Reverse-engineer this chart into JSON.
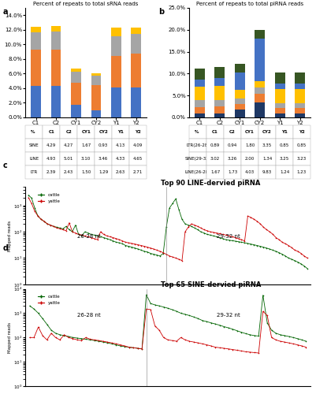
{
  "panel_a_title": "Percent of repeats to total sRNA reads",
  "panel_b_title": "Percent of repeats to total piRNA reads",
  "panel_c_title": "Top 90 LINE-dervied piRNA",
  "panel_d_title": "Top 65 SINE-dervied piRNA",
  "categories": [
    "C1",
    "C2",
    "CY1",
    "CY2",
    "Y1",
    "Y2"
  ],
  "sRNA_SINE": [
    4.29,
    4.27,
    1.67,
    0.93,
    4.13,
    4.09
  ],
  "sRNA_LINE": [
    4.93,
    5.01,
    3.1,
    3.46,
    4.33,
    4.65
  ],
  "sRNA_LTR": [
    2.39,
    2.43,
    1.5,
    1.29,
    2.63,
    2.71
  ],
  "sRNA_DNA": [
    0.8,
    0.8,
    0.4,
    0.3,
    1.2,
    0.8
  ],
  "piRNA_LTR2628": [
    0.89,
    0.94,
    1.8,
    3.35,
    0.85,
    0.85
  ],
  "piRNA_LTR2932": [
    1.5,
    1.5,
    1.2,
    2.0,
    1.2,
    1.2
  ],
  "piRNA_SINE2628": [
    1.5,
    1.5,
    1.2,
    1.5,
    1.2,
    1.2
  ],
  "piRNA_SINE2932": [
    3.02,
    3.26,
    2.0,
    1.34,
    3.25,
    3.23
  ],
  "piRNA_LINE2628": [
    1.67,
    1.73,
    4.03,
    9.83,
    1.24,
    1.23
  ],
  "piRNA_LINE2932": [
    2.5,
    2.5,
    2.0,
    2.0,
    2.5,
    2.5
  ],
  "color_SINE": "#4472C4",
  "color_LINE": "#ED7D31",
  "color_LTR": "#A5A5A5",
  "color_DNA": "#FFC000",
  "color_LTR2628": "#1F3864",
  "color_LTR2932": "#ED7D31",
  "color_SINE2628": "#A5A5A5",
  "color_SINE2932": "#FFC000",
  "color_LINE2628": "#4472C4",
  "color_LINE2932": "#375623",
  "table_a_rows": [
    "SINE",
    "LINE",
    "LTR"
  ],
  "table_a_data": [
    [
      4.29,
      4.27,
      1.67,
      0.93,
      4.13,
      4.09
    ],
    [
      4.93,
      5.01,
      3.1,
      3.46,
      4.33,
      4.65
    ],
    [
      2.39,
      2.43,
      1.5,
      1.29,
      2.63,
      2.71
    ]
  ],
  "table_b_rows": [
    "LTR(26-28)",
    "SINE(29-32)",
    "LINE(26-28)"
  ],
  "table_b_data": [
    [
      0.89,
      0.94,
      1.8,
      3.35,
      0.85,
      0.85
    ],
    [
      3.02,
      3.26,
      2.0,
      1.34,
      3.25,
      3.23
    ],
    [
      1.67,
      1.73,
      4.03,
      9.83,
      1.24,
      1.23
    ]
  ],
  "cattle_color": "#006400",
  "yattle_color": "#CC0000"
}
